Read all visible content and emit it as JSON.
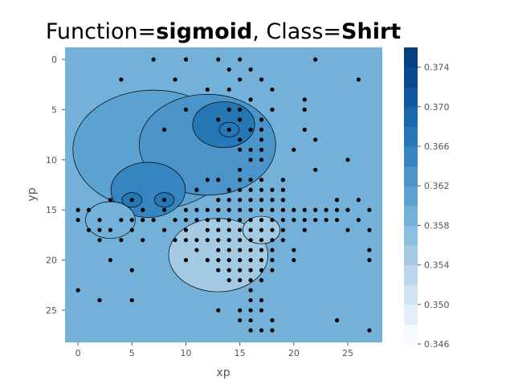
{
  "chart_data": {
    "type": "contour",
    "title_prefix": "Function=",
    "title_function": "sigmoid",
    "title_mid": ", Class=",
    "title_class": "Shirt",
    "xlabel": "xp",
    "ylabel": "yp",
    "xlim": [
      -1.2,
      28.2
    ],
    "ylim": [
      28.2,
      -1.2
    ],
    "y_inverted": true,
    "x_ticks": [
      0,
      5,
      10,
      15,
      20,
      25
    ],
    "y_ticks": [
      0,
      5,
      10,
      15,
      20,
      25
    ],
    "grid": false,
    "colorbar": {
      "levels": [
        0.346,
        0.348,
        0.35,
        0.352,
        0.354,
        0.356,
        0.358,
        0.36,
        0.362,
        0.364,
        0.366,
        0.368,
        0.37,
        0.372,
        0.374,
        0.376
      ],
      "tick_labels": [
        "0.346",
        "0.350",
        "0.354",
        "0.358",
        "0.362",
        "0.366",
        "0.370",
        "0.374"
      ],
      "colors": [
        "#f7fbff",
        "#e3eef9",
        "#d0e2f2",
        "#bcd6eb",
        "#a5cbe4",
        "#8cbfe0",
        "#73b1d9",
        "#5ca3d2",
        "#4a94c9",
        "#3785c0",
        "#2677b6",
        "#1967ad",
        "#0f57a0",
        "#0a4a8f",
        "#083d7f"
      ]
    },
    "base_value": 0.358,
    "blobs": [
      {
        "x": 13.5,
        "y": 6.5,
        "r": 2.5,
        "value": 0.366
      },
      {
        "x": 14.0,
        "y": 7.0,
        "r": 0.8,
        "value": 0.367
      },
      {
        "x": 12.0,
        "y": 8.5,
        "r": 5.5,
        "value": 0.362
      },
      {
        "x": 6.5,
        "y": 13.0,
        "r": 3.0,
        "value": 0.364
      },
      {
        "x": 5.0,
        "y": 14.0,
        "r": 0.8,
        "value": 0.366
      },
      {
        "x": 8.0,
        "y": 14.0,
        "r": 0.8,
        "value": 0.366
      },
      {
        "x": 7.0,
        "y": 9.0,
        "r": 6.5,
        "value": 0.36
      },
      {
        "x": 13.0,
        "y": 19.5,
        "r": 4.0,
        "value": 0.355
      },
      {
        "x": 17.0,
        "y": 17.0,
        "r": 1.5,
        "value": 0.354
      },
      {
        "x": 3.0,
        "y": 16.0,
        "r": 2.0,
        "value": 0.359
      }
    ],
    "points": [
      [
        7,
        0
      ],
      [
        10,
        0
      ],
      [
        13,
        0
      ],
      [
        15,
        0
      ],
      [
        22,
        0
      ],
      [
        14,
        1
      ],
      [
        16,
        1
      ],
      [
        4,
        2
      ],
      [
        9,
        2
      ],
      [
        15,
        2
      ],
      [
        17,
        2
      ],
      [
        26,
        2
      ],
      [
        12,
        3
      ],
      [
        14,
        3
      ],
      [
        18,
        3
      ],
      [
        16,
        4
      ],
      [
        21,
        4
      ],
      [
        10,
        5
      ],
      [
        14,
        5
      ],
      [
        15,
        5
      ],
      [
        18,
        5
      ],
      [
        21,
        5
      ],
      [
        13,
        6
      ],
      [
        15,
        6
      ],
      [
        17,
        6
      ],
      [
        8,
        7
      ],
      [
        14,
        7
      ],
      [
        16,
        7
      ],
      [
        17,
        7
      ],
      [
        21,
        7
      ],
      [
        15,
        8
      ],
      [
        17,
        8
      ],
      [
        22,
        8
      ],
      [
        15,
        9
      ],
      [
        16,
        9
      ],
      [
        17,
        9
      ],
      [
        20,
        9
      ],
      [
        16,
        10
      ],
      [
        17,
        10
      ],
      [
        25,
        10
      ],
      [
        15,
        11
      ],
      [
        22,
        11
      ],
      [
        12,
        12
      ],
      [
        13,
        12
      ],
      [
        15,
        12
      ],
      [
        16,
        12
      ],
      [
        17,
        12
      ],
      [
        19,
        12
      ],
      [
        11,
        13
      ],
      [
        14,
        13
      ],
      [
        15,
        13
      ],
      [
        16,
        13
      ],
      [
        17,
        13
      ],
      [
        18,
        13
      ],
      [
        19,
        13
      ],
      [
        3,
        14
      ],
      [
        5,
        14
      ],
      [
        8,
        14
      ],
      [
        13,
        14
      ],
      [
        14,
        14
      ],
      [
        15,
        14
      ],
      [
        16,
        14
      ],
      [
        17,
        14
      ],
      [
        18,
        14
      ],
      [
        19,
        14
      ],
      [
        24,
        14
      ],
      [
        26,
        14
      ],
      [
        0,
        15
      ],
      [
        1,
        15
      ],
      [
        6,
        15
      ],
      [
        8,
        15
      ],
      [
        10,
        15
      ],
      [
        11,
        15
      ],
      [
        12,
        15
      ],
      [
        13,
        15
      ],
      [
        14,
        15
      ],
      [
        15,
        15
      ],
      [
        16,
        15
      ],
      [
        17,
        15
      ],
      [
        18,
        15
      ],
      [
        19,
        15
      ],
      [
        20,
        15
      ],
      [
        21,
        15
      ],
      [
        22,
        15
      ],
      [
        23,
        15
      ],
      [
        24,
        15
      ],
      [
        25,
        15
      ],
      [
        27,
        15
      ],
      [
        0,
        16
      ],
      [
        2,
        16
      ],
      [
        4,
        16
      ],
      [
        5,
        16
      ],
      [
        6,
        16
      ],
      [
        7,
        16
      ],
      [
        9,
        16
      ],
      [
        10,
        16
      ],
      [
        11,
        16
      ],
      [
        12,
        16
      ],
      [
        13,
        16
      ],
      [
        14,
        16
      ],
      [
        15,
        16
      ],
      [
        16,
        16
      ],
      [
        17,
        16
      ],
      [
        18,
        16
      ],
      [
        19,
        16
      ],
      [
        20,
        16
      ],
      [
        21,
        16
      ],
      [
        22,
        16
      ],
      [
        23,
        16
      ],
      [
        24,
        16
      ],
      [
        26,
        16
      ],
      [
        1,
        17
      ],
      [
        2,
        17
      ],
      [
        3,
        17
      ],
      [
        5,
        17
      ],
      [
        8,
        17
      ],
      [
        10,
        17
      ],
      [
        12,
        17
      ],
      [
        13,
        17
      ],
      [
        14,
        17
      ],
      [
        15,
        17
      ],
      [
        16,
        17
      ],
      [
        17,
        17
      ],
      [
        18,
        17
      ],
      [
        19,
        17
      ],
      [
        21,
        17
      ],
      [
        25,
        17
      ],
      [
        27,
        17
      ],
      [
        2,
        18
      ],
      [
        4,
        18
      ],
      [
        6,
        18
      ],
      [
        9,
        18
      ],
      [
        10,
        18
      ],
      [
        11,
        18
      ],
      [
        12,
        18
      ],
      [
        13,
        18
      ],
      [
        14,
        18
      ],
      [
        15,
        18
      ],
      [
        16,
        18
      ],
      [
        17,
        18
      ],
      [
        18,
        18
      ],
      [
        19,
        18
      ],
      [
        11,
        19
      ],
      [
        13,
        19
      ],
      [
        14,
        19
      ],
      [
        15,
        19
      ],
      [
        16,
        19
      ],
      [
        17,
        19
      ],
      [
        18,
        19
      ],
      [
        20,
        19
      ],
      [
        27,
        19
      ],
      [
        3,
        20
      ],
      [
        10,
        20
      ],
      [
        12,
        20
      ],
      [
        13,
        20
      ],
      [
        14,
        20
      ],
      [
        15,
        20
      ],
      [
        16,
        20
      ],
      [
        17,
        20
      ],
      [
        18,
        20
      ],
      [
        20,
        20
      ],
      [
        27,
        20
      ],
      [
        5,
        21
      ],
      [
        13,
        21
      ],
      [
        14,
        21
      ],
      [
        15,
        21
      ],
      [
        16,
        21
      ],
      [
        17,
        21
      ],
      [
        18,
        21
      ],
      [
        14,
        22
      ],
      [
        15,
        22
      ],
      [
        16,
        22
      ],
      [
        17,
        22
      ],
      [
        0,
        23
      ],
      [
        16,
        23
      ],
      [
        2,
        24
      ],
      [
        5,
        24
      ],
      [
        16,
        24
      ],
      [
        17,
        24
      ],
      [
        13,
        25
      ],
      [
        15,
        25
      ],
      [
        16,
        25
      ],
      [
        17,
        25
      ],
      [
        15,
        26
      ],
      [
        16,
        26
      ],
      [
        18,
        26
      ],
      [
        24,
        26
      ],
      [
        16,
        27
      ],
      [
        17,
        27
      ],
      [
        18,
        27
      ],
      [
        27,
        27
      ]
    ]
  }
}
